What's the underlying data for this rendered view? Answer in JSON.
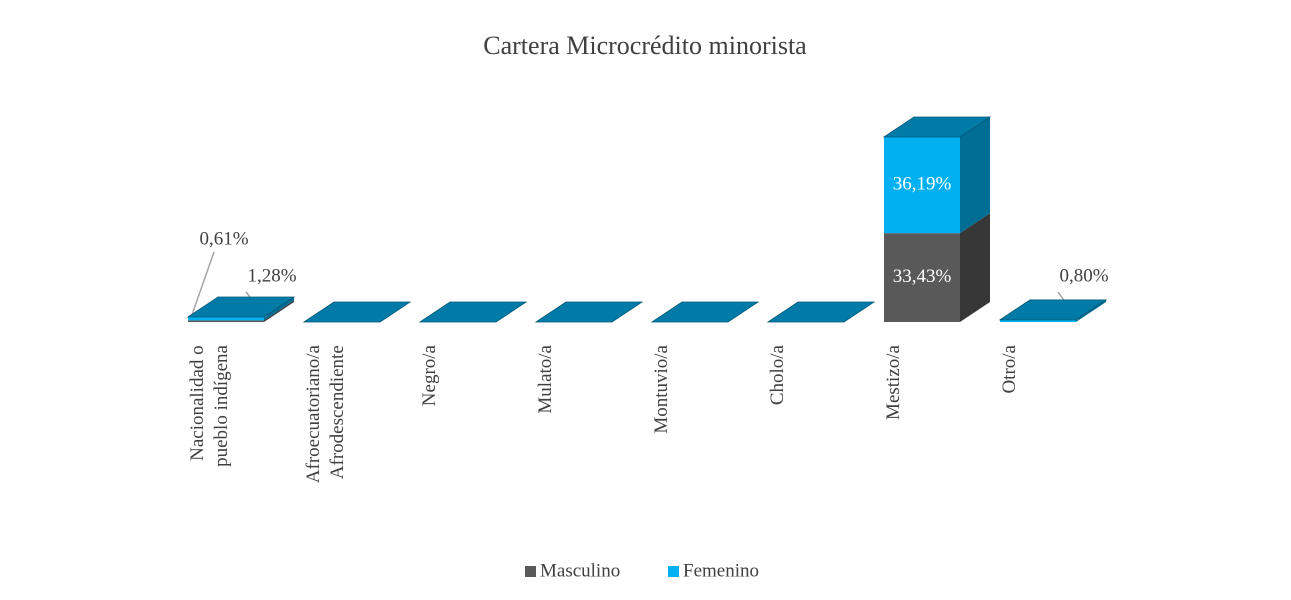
{
  "chart_data": {
    "type": "bar3d_stacked",
    "title": "Cartera Microcrédito minorista",
    "categories": [
      "Nacionalidad o\npueblo indígena",
      "Afroecuatoriano/a\nAfrodescendiente",
      "Negro/a",
      "Mulato/a",
      "Montuvio/a",
      "Cholo/a",
      "Mestizo/a",
      "Otro/a"
    ],
    "series": [
      {
        "name": "Masculino",
        "color": "#595959",
        "values": [
          0.61,
          0,
          0,
          0,
          0,
          0,
          33.43,
          0
        ],
        "value_labels": [
          "0,61%",
          null,
          null,
          null,
          null,
          null,
          "33,43%",
          null
        ]
      },
      {
        "name": "Femenino",
        "color": "#00b0f0",
        "values": [
          1.28,
          0,
          0,
          0,
          0,
          0,
          36.19,
          0.8
        ],
        "value_labels": [
          "1,28%",
          null,
          null,
          null,
          null,
          null,
          "36,19%",
          "0,80%"
        ]
      }
    ],
    "legend": "bottom"
  }
}
